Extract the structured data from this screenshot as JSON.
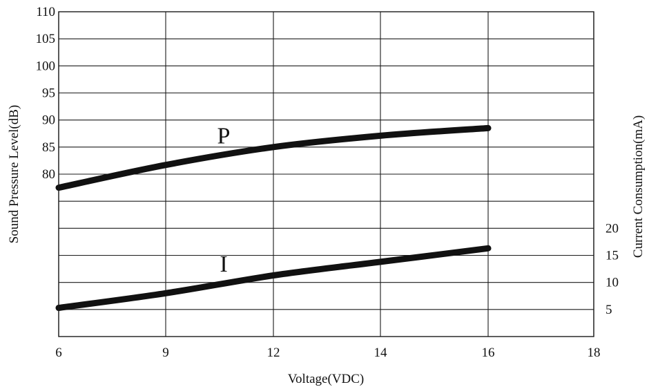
{
  "chart_data": {
    "type": "line",
    "xlabel": "Voltage(VDC)",
    "ylabel": "Sound Pressure Level(dB)",
    "y2label": "Current Consumption(mA)",
    "x_ticks": [
      6,
      9,
      12,
      14,
      16,
      18
    ],
    "y_ticks": [
      80,
      85,
      90,
      95,
      100,
      105,
      110
    ],
    "y2_ticks": [
      5,
      10,
      15,
      20
    ],
    "grid": true,
    "series": [
      {
        "name": "P",
        "axis": "left",
        "points": [
          [
            6,
            77.5
          ],
          [
            9,
            81.7
          ],
          [
            12,
            85.0
          ],
          [
            14,
            87.1
          ],
          [
            16,
            88.5
          ]
        ]
      },
      {
        "name": "I",
        "axis": "right",
        "points": [
          [
            6,
            5.3
          ],
          [
            9,
            8.0
          ],
          [
            12,
            11.3
          ],
          [
            14,
            13.8
          ],
          [
            16,
            16.3
          ]
        ]
      }
    ]
  }
}
